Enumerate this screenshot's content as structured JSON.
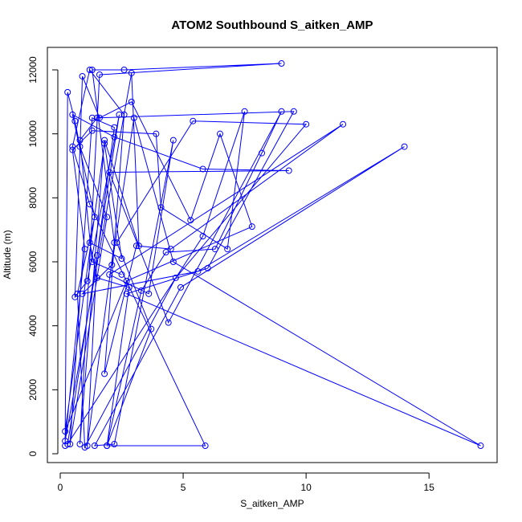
{
  "chart_data": {
    "type": "line",
    "title": "ATOM2 Southbound S_aitken_AMP",
    "xlabel": "S_aitken_AMP",
    "ylabel": "Altitude (m)",
    "xlim": [
      0,
      17.6
    ],
    "ylim": [
      0,
      12500
    ],
    "xticks": [
      0,
      5,
      10,
      15
    ],
    "yticks": [
      0,
      2000,
      4000,
      6000,
      8000,
      10000,
      12000
    ],
    "grid": false,
    "legend": "none",
    "series_color": "#0000ff",
    "marker": "open-circle",
    "series": [
      {
        "points": [
          [
            0.2,
            250
          ],
          [
            0.3,
            11300
          ],
          [
            0.6,
            10400
          ],
          [
            0.8,
            9600
          ],
          [
            1.9,
            7400
          ],
          [
            0.4,
            300
          ],
          [
            1.3,
            10500
          ],
          [
            2.2,
            10200
          ],
          [
            1.5,
            6200
          ],
          [
            1.1,
            250
          ],
          [
            2.2,
            6600
          ],
          [
            1.3,
            12000
          ],
          [
            2.6,
            12000
          ],
          [
            9.0,
            12200
          ],
          [
            1.6,
            11850
          ],
          [
            0.8,
            300
          ],
          [
            1.8,
            9800
          ],
          [
            3.2,
            6500
          ],
          [
            2.9,
            11900
          ],
          [
            0.2,
            400
          ],
          [
            1.0,
            6400
          ],
          [
            0.5,
            9500
          ],
          [
            1.3,
            10100
          ],
          [
            3.9,
            10000
          ],
          [
            4.1,
            7700
          ],
          [
            6.8,
            6400
          ],
          [
            7.5,
            10700
          ],
          [
            5.8,
            6800
          ],
          [
            0.3,
            300
          ],
          [
            2.4,
            10600
          ],
          [
            1.1,
            5400
          ],
          [
            0.6,
            4900
          ],
          [
            0.9,
            11800
          ],
          [
            1.6,
            10500
          ],
          [
            2.9,
            11000
          ],
          [
            5.3,
            7300
          ],
          [
            6.5,
            10000
          ],
          [
            7.8,
            7100
          ],
          [
            2.7,
            5400
          ],
          [
            0.2,
            700
          ],
          [
            1.8,
            9700
          ],
          [
            2.5,
            6100
          ],
          [
            1.2,
            6600
          ],
          [
            1.5,
            5500
          ],
          [
            2.8,
            5200
          ],
          [
            1.9,
            250
          ],
          [
            3.3,
            5100
          ],
          [
            4.3,
            6300
          ],
          [
            6.3,
            6400
          ],
          [
            8.2,
            9400
          ],
          [
            9.0,
            10700
          ],
          [
            4.4,
            4100
          ],
          [
            2.0,
            8800
          ],
          [
            9.3,
            8850
          ],
          [
            5.8,
            8900
          ],
          [
            2.2,
            9900
          ],
          [
            0.5,
            10600
          ],
          [
            1.4,
            7400
          ],
          [
            0.7,
            5000
          ],
          [
            1.0,
            200
          ],
          [
            4.7,
            5500
          ],
          [
            10.0,
            10300
          ],
          [
            5.4,
            10400
          ],
          [
            2.3,
            6600
          ],
          [
            3.7,
            3900
          ],
          [
            1.9,
            250
          ],
          [
            5.9,
            250
          ],
          [
            1.2,
            7800
          ],
          [
            0.5,
            9600
          ],
          [
            1.2,
            12000
          ],
          [
            2.6,
            10600
          ],
          [
            1.8,
            2500
          ],
          [
            3.1,
            6500
          ],
          [
            4.5,
            6400
          ],
          [
            11.5,
            10300
          ],
          [
            2.0,
            5600
          ],
          [
            3.6,
            5000
          ],
          [
            4.6,
            9800
          ],
          [
            2.2,
            300
          ],
          [
            1.4,
            250
          ],
          [
            4.9,
            5200
          ],
          [
            14.0,
            9600
          ],
          [
            5.6,
            5700
          ],
          [
            0.9,
            5000
          ],
          [
            2.1,
            5900
          ],
          [
            3.0,
            10500
          ],
          [
            4.6,
            6000
          ],
          [
            17.1,
            250
          ],
          [
            2.7,
            5000
          ],
          [
            6.0,
            5800
          ],
          [
            9.5,
            10700
          ],
          [
            1.5,
            10500
          ],
          [
            0.8,
            9800
          ],
          [
            1.3,
            6000
          ],
          [
            2.5,
            5600
          ]
        ]
      }
    ]
  }
}
